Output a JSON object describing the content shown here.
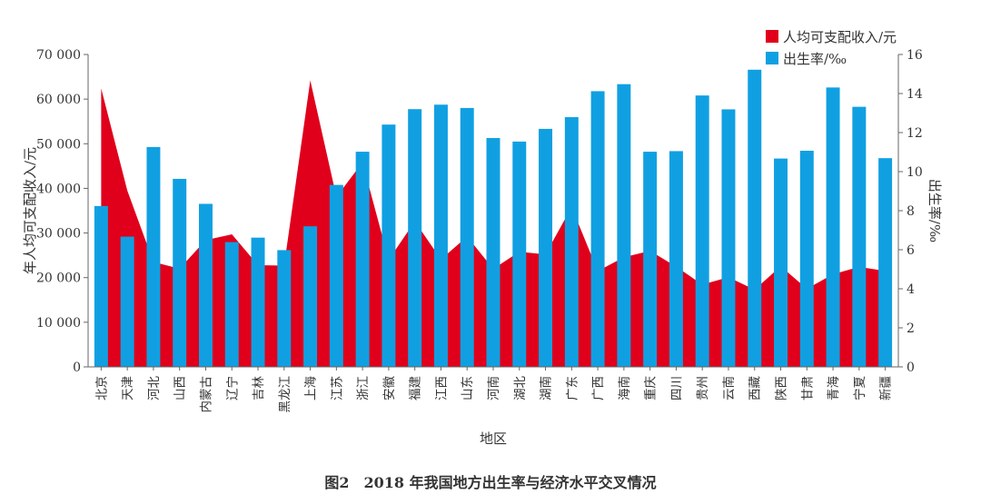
{
  "caption": "图2　2018 年我国地方出生率与经济水平交叉情况",
  "colors": {
    "area": "#e0001b",
    "bar": "#10a0e2",
    "axis": "#666666",
    "text": "#333333"
  },
  "chart_data": {
    "type": "bar",
    "xlabel": "地区",
    "ylabel_left": "年人均可支配收入/元",
    "ylabel_right": "出生率/‰",
    "ylim_left": [
      0,
      70000
    ],
    "ylim_right": [
      0,
      16
    ],
    "yticks_left": [
      "0",
      "10 000",
      "20 000",
      "30 000",
      "40 000",
      "50 000",
      "60 000",
      "70 000"
    ],
    "yticks_right": [
      "0",
      "2",
      "4",
      "6",
      "8",
      "10",
      "12",
      "14",
      "16"
    ],
    "grid": false,
    "legend_position": "top-right",
    "categories": [
      "北京",
      "天津",
      "河北",
      "山西",
      "内蒙古",
      "辽宁",
      "吉林",
      "黑龙江",
      "上海",
      "江苏",
      "浙江",
      "安徽",
      "福建",
      "江西",
      "山东",
      "河南",
      "湖北",
      "湖南",
      "广东",
      "广西",
      "海南",
      "重庆",
      "四川",
      "贵州",
      "云南",
      "西藏",
      "陕西",
      "甘肃",
      "青海",
      "宁夏",
      "新疆"
    ],
    "series": [
      {
        "name": "人均可支配收入/元",
        "kind": "area",
        "axis": "left",
        "values": [
          62400,
          39500,
          23500,
          21990,
          28400,
          29700,
          22800,
          22700,
          64200,
          38100,
          45800,
          23980,
          32600,
          24080,
          29200,
          21960,
          25800,
          25200,
          35800,
          21480,
          24580,
          26000,
          22460,
          18430,
          20090,
          17290,
          22530,
          17490,
          20760,
          22400,
          21500
        ]
      },
      {
        "name": "出生率/‰",
        "kind": "bar",
        "axis": "right",
        "values": [
          8.24,
          6.67,
          11.26,
          9.63,
          8.35,
          6.39,
          6.62,
          5.98,
          7.2,
          9.32,
          11.02,
          12.41,
          13.2,
          13.43,
          13.26,
          11.72,
          11.54,
          12.19,
          12.79,
          14.12,
          14.48,
          11.02,
          11.05,
          13.9,
          13.19,
          15.22,
          10.67,
          11.07,
          14.31,
          13.32,
          10.69
        ]
      }
    ]
  }
}
